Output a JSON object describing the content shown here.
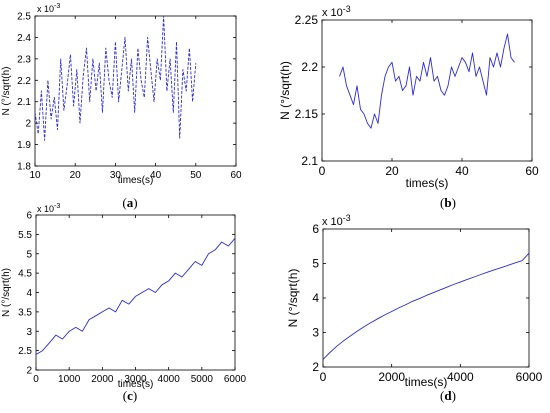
{
  "chart_data": [
    {
      "id": "a",
      "type": "line",
      "caption": "a",
      "scale_label": "x 10",
      "scale_exp": "-3",
      "xlabel": "times(s)",
      "ylabel": "N (°/sqrt(h)",
      "xlim": [
        10,
        60
      ],
      "ylim": [
        1.8,
        2.5
      ],
      "xticks": [
        10,
        20,
        30,
        40,
        50,
        60
      ],
      "yticks": [
        1.8,
        1.9,
        2.0,
        2.1,
        2.2,
        2.3,
        2.4,
        2.5
      ],
      "xtick_labels": [
        "10",
        "20",
        "30",
        "40",
        "50",
        "60"
      ],
      "ytick_labels": [
        "1.8",
        "1.9",
        "2",
        "2.1",
        "2.2",
        "2.3",
        "2.4",
        "2.5"
      ],
      "grid": false,
      "line_style": "dashed",
      "series": [
        {
          "x": [
            10,
            10.8,
            11.6,
            12.4,
            13.2,
            14,
            14.8,
            15.6,
            16.4,
            17.2,
            18,
            18.8,
            19.6,
            20.4,
            21.2,
            22,
            22.8,
            23.6,
            24.4,
            25.2,
            26,
            26.8,
            27.6,
            28.4,
            29.2,
            30,
            30.8,
            31.6,
            32.4,
            33.2,
            34,
            34.8,
            35.6,
            36.4,
            37.2,
            38,
            38.8,
            39.6,
            40.4,
            41.2,
            42,
            42.8,
            43.6,
            44.4,
            45.2,
            46,
            46.8,
            47.6,
            48.4,
            49.2,
            50
          ],
          "values": [
            2.05,
            1.95,
            2.15,
            1.92,
            2.2,
            2.02,
            2.12,
            1.97,
            2.3,
            2.06,
            2.18,
            2.32,
            2.08,
            2.25,
            2.0,
            2.22,
            2.35,
            2.1,
            2.3,
            2.15,
            2.28,
            2.05,
            2.35,
            2.2,
            2.12,
            2.38,
            2.1,
            2.25,
            2.4,
            2.15,
            2.3,
            2.05,
            2.35,
            2.2,
            2.12,
            2.4,
            2.25,
            2.1,
            2.3,
            2.2,
            2.5,
            2.15,
            2.3,
            2.05,
            2.38,
            1.93,
            2.25,
            2.15,
            2.35,
            2.1,
            2.28
          ]
        }
      ]
    },
    {
      "id": "b",
      "type": "line",
      "caption": "b",
      "scale_label": "x 10",
      "scale_exp": "-3",
      "xlabel": "times(s)",
      "ylabel": "N (°/sqrt(h)",
      "xlim": [
        0,
        60
      ],
      "ylim": [
        2.1,
        2.25
      ],
      "xticks": [
        0,
        20,
        40,
        60
      ],
      "yticks": [
        2.1,
        2.15,
        2.2,
        2.25
      ],
      "xtick_labels": [
        "0",
        "20",
        "40",
        "60"
      ],
      "ytick_labels": [
        "2.1",
        "2.15",
        "2.2",
        "2.25"
      ],
      "grid": false,
      "line_style": "solid",
      "series": [
        {
          "x": [
            5,
            6,
            7,
            8,
            9,
            10,
            11,
            12,
            13,
            14,
            15,
            16,
            17,
            18,
            19,
            20,
            21,
            22,
            23,
            24,
            25,
            26,
            27,
            28,
            29,
            30,
            31,
            32,
            33,
            34,
            35,
            36,
            37,
            38,
            39,
            40,
            41,
            42,
            43,
            44,
            45,
            46,
            47,
            48,
            49,
            50,
            51,
            52,
            53,
            54,
            55
          ],
          "values": [
            2.19,
            2.2,
            2.18,
            2.17,
            2.16,
            2.18,
            2.155,
            2.15,
            2.14,
            2.135,
            2.15,
            2.14,
            2.17,
            2.19,
            2.2,
            2.205,
            2.185,
            2.19,
            2.175,
            2.18,
            2.2,
            2.17,
            2.19,
            2.185,
            2.205,
            2.19,
            2.21,
            2.185,
            2.19,
            2.175,
            2.17,
            2.18,
            2.2,
            2.19,
            2.2,
            2.21,
            2.205,
            2.195,
            2.215,
            2.19,
            2.2,
            2.185,
            2.17,
            2.21,
            2.2,
            2.215,
            2.2,
            2.22,
            2.235,
            2.21,
            2.205
          ]
        }
      ]
    },
    {
      "id": "c",
      "type": "line",
      "caption": "c",
      "scale_label": "x 10",
      "scale_exp": "-3",
      "xlabel": "times(s)",
      "ylabel": "N (°/sqrt(h)",
      "xlim": [
        0,
        6000
      ],
      "ylim": [
        2,
        6
      ],
      "xticks": [
        0,
        1000,
        2000,
        3000,
        4000,
        5000,
        6000
      ],
      "yticks": [
        2,
        2.5,
        3,
        3.5,
        4,
        4.5,
        5,
        5.5,
        6
      ],
      "xtick_labels": [
        "0",
        "1000",
        "2000",
        "3000",
        "4000",
        "5000",
        "6000"
      ],
      "ytick_labels": [
        "2",
        "2.5",
        "3",
        "3.5",
        "4",
        "4.5",
        "5",
        "5.5",
        "6"
      ],
      "grid": false,
      "line_style": "solid",
      "series": [
        {
          "x": [
            0,
            200,
            400,
            600,
            800,
            1000,
            1200,
            1400,
            1600,
            1800,
            2000,
            2200,
            2400,
            2600,
            2800,
            3000,
            3200,
            3400,
            3600,
            3800,
            4000,
            4200,
            4400,
            4600,
            4800,
            5000,
            5200,
            5400,
            5600,
            5800,
            6000
          ],
          "values": [
            2.4,
            2.5,
            2.7,
            2.9,
            2.8,
            3.0,
            3.1,
            3.0,
            3.3,
            3.4,
            3.5,
            3.6,
            3.5,
            3.8,
            3.7,
            3.9,
            4.0,
            4.1,
            4.0,
            4.2,
            4.3,
            4.5,
            4.4,
            4.6,
            4.8,
            4.7,
            5.0,
            5.1,
            5.3,
            5.2,
            5.4
          ]
        }
      ]
    },
    {
      "id": "d",
      "type": "line",
      "caption": "d",
      "scale_label": "x 10",
      "scale_exp": "-3",
      "xlabel": "times(s)",
      "ylabel": "N (°/sqrt(h)",
      "xlim": [
        0,
        6000
      ],
      "ylim": [
        2,
        6
      ],
      "xticks": [
        0,
        2000,
        4000,
        6000
      ],
      "yticks": [
        2,
        3,
        4,
        5,
        6
      ],
      "xtick_labels": [
        "0",
        "2000",
        "4000",
        "6000"
      ],
      "ytick_labels": [
        "2",
        "3",
        "4",
        "5",
        "6"
      ],
      "grid": false,
      "line_style": "solid",
      "series": [
        {
          "x": [
            0,
            200,
            400,
            600,
            800,
            1000,
            1200,
            1400,
            1600,
            1800,
            2000,
            2200,
            2400,
            2600,
            2800,
            3000,
            3200,
            3400,
            3600,
            3800,
            4000,
            4200,
            4400,
            4600,
            4800,
            5000,
            5200,
            5400,
            5600,
            5800,
            6000
          ],
          "values": [
            2.22,
            2.42,
            2.6,
            2.76,
            2.9,
            3.04,
            3.17,
            3.29,
            3.4,
            3.51,
            3.61,
            3.71,
            3.8,
            3.9,
            3.98,
            4.07,
            4.15,
            4.23,
            4.31,
            4.39,
            4.46,
            4.54,
            4.61,
            4.68,
            4.75,
            4.82,
            4.88,
            4.95,
            5.02,
            5.08,
            5.3
          ]
        }
      ]
    }
  ],
  "colors": {
    "line": "#2a2ad8",
    "axis": "#000000",
    "background": "#ffffff"
  }
}
